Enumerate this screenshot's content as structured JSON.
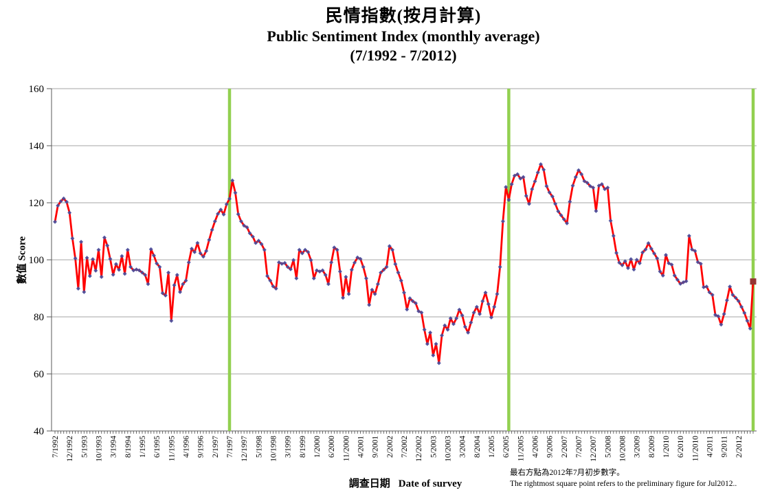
{
  "header": {
    "title_zh": "民情指數(按月計算)",
    "title_en": "Public Sentiment Index (monthly average)",
    "title_range": "(7/1992 - 7/2012)"
  },
  "axis": {
    "ylabel": "數值 Score",
    "xlabel_zh": "調查日期",
    "xlabel_en": "Date of survey"
  },
  "footnote": {
    "zh": "最右方點為2012年7月初步數字。",
    "en": "The rightmost square point refers to the preliminary figure  for Jul2012.."
  },
  "colors": {
    "line": "#FF0000",
    "marker": "#4650A0",
    "event_line": "#92D050",
    "grid": "#A6A6A6",
    "axis": "#595959",
    "preliminary_square": "#943634"
  },
  "chart_data": {
    "type": "line",
    "title": "民情指數(按月計算) Public Sentiment Index (monthly average) (7/1992 - 7/2012)",
    "xlabel": "調查日期 Date of survey",
    "ylabel": "數值 Score",
    "ylim": [
      40,
      160
    ],
    "y_ticks": [
      40,
      60,
      80,
      100,
      120,
      140,
      160
    ],
    "grid": true,
    "legend_position": "none",
    "x_start": "7/1992",
    "x_end": "7/2012",
    "x_interval_months": 1,
    "x_tick_labels": [
      "7/1992",
      "12/1992",
      "5/1993",
      "10/1993",
      "3/1994",
      "8/1994",
      "1/1995",
      "6/1995",
      "11/1995",
      "4/1996",
      "9/1996",
      "2/1997",
      "7/1997",
      "12/1997",
      "5/1998",
      "10/1998",
      "3/1999",
      "8/1999",
      "1/2000",
      "6/2000",
      "11/2000",
      "4/2001",
      "9/2001",
      "2/2002",
      "7/2002",
      "12/2002",
      "5/2003",
      "10/2003",
      "3/2004",
      "8/2004",
      "1/2005",
      "6/2005",
      "11/2005",
      "4/2006",
      "9/2006",
      "2/2007",
      "7/2007",
      "12/2007",
      "5/2008",
      "10/2008",
      "3/2009",
      "8/2009",
      "1/2010",
      "6/2010",
      "11/2010",
      "4/2011",
      "9/2011",
      "2/2012"
    ],
    "x_tick_step_months": 5,
    "vertical_event_lines": {
      "dates": [
        "7/1997",
        "7/2005",
        "7/2012"
      ],
      "month_indices": [
        60,
        156,
        240
      ]
    },
    "last_point": {
      "marker": "square",
      "value": 92.4,
      "date": "7/2012",
      "note": "preliminary figure"
    },
    "series": [
      {
        "name": "Public Sentiment Index",
        "values": [
          113.3,
          119,
          120.5,
          121.5,
          120.3,
          116.5,
          107.5,
          100.5,
          89.9,
          106.3,
          88.7,
          100.7,
          94.3,
          100.2,
          96.2,
          103.5,
          94,
          107.8,
          105,
          100.3,
          94.8,
          98.5,
          96.5,
          101.3,
          95.1,
          103.5,
          97.5,
          96.3,
          96.6,
          96.3,
          95.5,
          94.7,
          91.5,
          103.7,
          101.5,
          98.7,
          97.5,
          88.3,
          87.5,
          95.5,
          78.6,
          91.1,
          94.7,
          88.7,
          91.5,
          92.7,
          99.1,
          103.9,
          102.7,
          105.9,
          102.3,
          101.1,
          103.1,
          107,
          110.5,
          113.5,
          116.1,
          117.6,
          115.9,
          119.5,
          121.4,
          127.8,
          123.5,
          116,
          113.5,
          112,
          111.4,
          109.3,
          108.1,
          105.9,
          106.7,
          105.5,
          103.5,
          94.3,
          92.7,
          90.7,
          89.9,
          99.1,
          98.6,
          98.9,
          97.5,
          96.7,
          99.9,
          93.5,
          103.5,
          102.3,
          103.5,
          102.7,
          99.9,
          93.5,
          96.3,
          95.9,
          96.3,
          94.7,
          91.5,
          99.1,
          104.3,
          103.5,
          95.9,
          86.7,
          94,
          88,
          96.5,
          99,
          100.8,
          100.3,
          97.5,
          93.5,
          84.2,
          89.5,
          88,
          91.5,
          95.5,
          96.5,
          97.5,
          104.8,
          103.5,
          98.5,
          95.5,
          92.7,
          88.5,
          82.6,
          86.5,
          85.5,
          84.8,
          82,
          81.5,
          75.5,
          70.5,
          74.5,
          66.5,
          70.5,
          63.8,
          73.5,
          77,
          75.5,
          79.5,
          77.5,
          79.5,
          82.5,
          80.5,
          76.5,
          74.5,
          78,
          81.5,
          83.5,
          81,
          85.5,
          88.5,
          84.5,
          79.8,
          83.5,
          88,
          97.5,
          113.5,
          125.5,
          121,
          126.5,
          129.5,
          130,
          128.5,
          129,
          122.4,
          119.6,
          124.8,
          127.5,
          130.6,
          133.5,
          131.6,
          125.8,
          123.6,
          122.2,
          119.6,
          117,
          115.6,
          114.2,
          112.8,
          120.4,
          126,
          129,
          131.4,
          130,
          127.6,
          127,
          125.8,
          125.3,
          117.1,
          126,
          126.5,
          124.8,
          125.3,
          113.7,
          108.4,
          102.4,
          99,
          98.1,
          99.5,
          97.1,
          100.2,
          96.6,
          100,
          98.8,
          102.6,
          103.6,
          105.8,
          103.9,
          102.2,
          100.5,
          95.9,
          94.5,
          101.7,
          98.8,
          98.3,
          94.5,
          93,
          91.6,
          92.1,
          92.5,
          108.4,
          103.6,
          103.1,
          99.2,
          98.6,
          90.4,
          90.6,
          88.6,
          87.7,
          80.7,
          80.2,
          77.3,
          81,
          85.8,
          90.6,
          87.7,
          86.7,
          85.5,
          83.5,
          81.4,
          78.6,
          75.9,
          92.4
        ]
      }
    ]
  }
}
